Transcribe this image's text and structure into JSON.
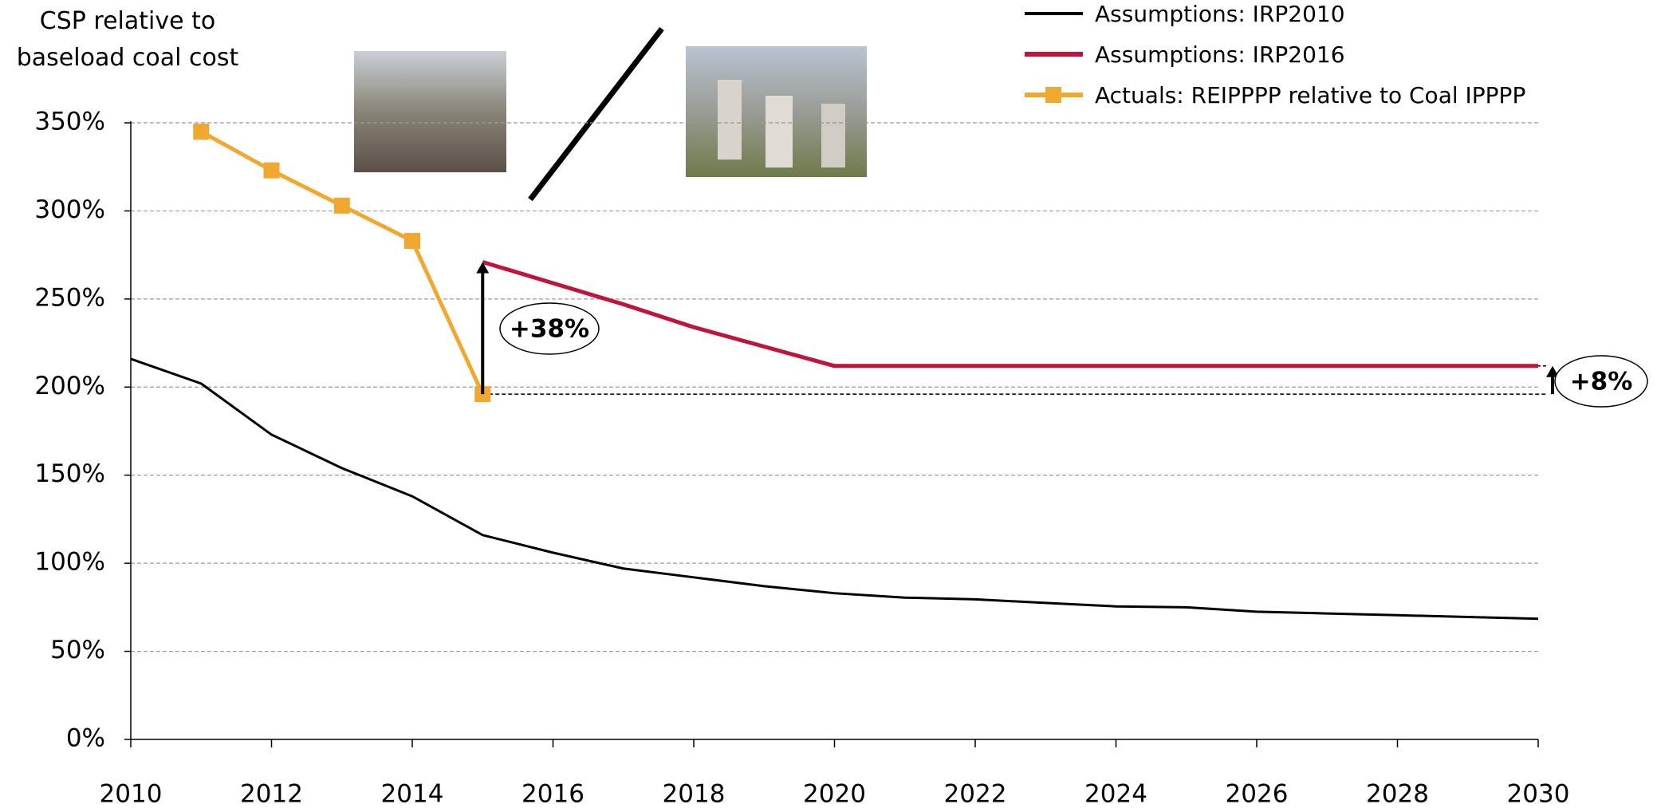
{
  "chart_data": {
    "type": "line",
    "y_label": "CSP relative to baseload coal cost",
    "x": [
      2010,
      2011,
      2012,
      2013,
      2014,
      2015,
      2016,
      2017,
      2018,
      2019,
      2020,
      2021,
      2022,
      2023,
      2024,
      2025,
      2026,
      2027,
      2028,
      2029,
      2030
    ],
    "series": [
      {
        "name": "Assumptions: IRP2010",
        "color": "#000000",
        "values": [
          216,
          202,
          173,
          154,
          138,
          116,
          106,
          97,
          92,
          87,
          83,
          80.5,
          79.5,
          77.5,
          75.5,
          75,
          72.5,
          71.5,
          70.5,
          69.5,
          68.5
        ]
      },
      {
        "name": "Assumptions: IRP2016",
        "color": "#c0143c",
        "values": [
          null,
          null,
          null,
          null,
          null,
          271,
          259,
          247,
          234,
          223,
          212,
          212,
          212,
          212,
          212,
          212,
          212,
          212,
          212,
          212,
          212
        ]
      },
      {
        "name": "Actuals: REIPPPP relative to Coal IPPPP",
        "color": "#f0a830",
        "marker": "square",
        "values": [
          null,
          345,
          323,
          303,
          283,
          196,
          null,
          null,
          null,
          null,
          null,
          null,
          null,
          null,
          null,
          null,
          null,
          null,
          null,
          null,
          null
        ]
      }
    ],
    "annotations": [
      "+38%",
      "+8%"
    ],
    "xlim": [
      2010,
      2030
    ],
    "xticks": [
      2010,
      2012,
      2014,
      2016,
      2018,
      2020,
      2022,
      2024,
      2026,
      2028,
      2030
    ],
    "ylim": [
      0,
      350
    ],
    "yticks": [
      {
        "value": 0,
        "label": "0%"
      },
      {
        "value": 50,
        "label": "50%"
      },
      {
        "value": 100,
        "label": "100%"
      },
      {
        "value": 150,
        "label": "150%"
      },
      {
        "value": 200,
        "label": "200%"
      },
      {
        "value": 250,
        "label": "250%"
      },
      {
        "value": 300,
        "label": "300%"
      },
      {
        "value": 350,
        "label": "350%"
      }
    ],
    "grid": true,
    "legend": "top-right"
  }
}
